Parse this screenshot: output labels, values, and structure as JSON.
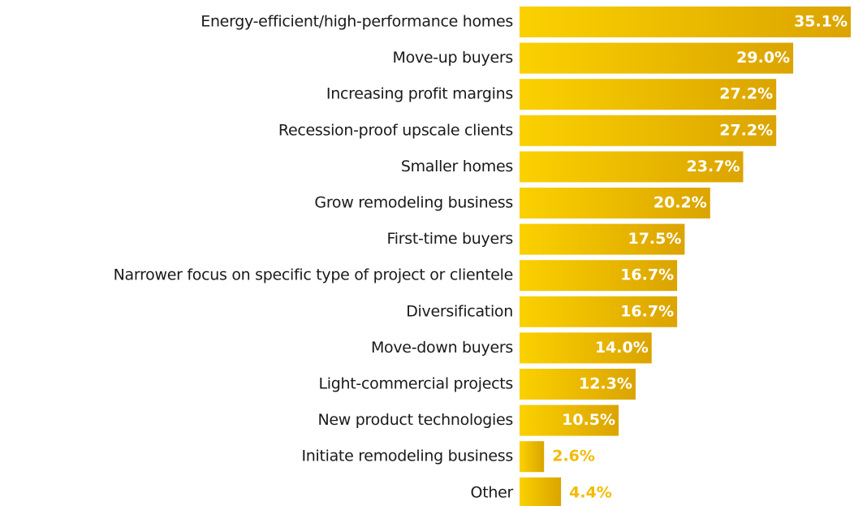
{
  "chart_data": {
    "type": "bar",
    "orientation": "horizontal",
    "categories": [
      "Energy-efficient/high-performance homes",
      "Move-up buyers",
      "Increasing profit margins",
      "Recession-proof upscale clients",
      "Smaller homes",
      "Grow remodeling business",
      "First-time buyers",
      "Narrower focus on specific type of project or clientele",
      "Diversification",
      "Move-down buyers",
      "Light-commercial projects",
      "New product technologies",
      "Initiate remodeling business",
      "Other"
    ],
    "values": [
      35.1,
      29.0,
      27.2,
      27.2,
      23.7,
      20.2,
      17.5,
      16.7,
      16.7,
      14.0,
      12.3,
      10.5,
      2.6,
      4.4
    ],
    "value_labels": [
      "35.1%",
      "29.0%",
      "27.2%",
      "27.2%",
      "23.7%",
      "20.2%",
      "17.5%",
      "16.7%",
      "16.7%",
      "14.0%",
      "12.3%",
      "10.5%",
      "2.6%",
      "4.4%"
    ],
    "color": "#f2bb00"
  }
}
